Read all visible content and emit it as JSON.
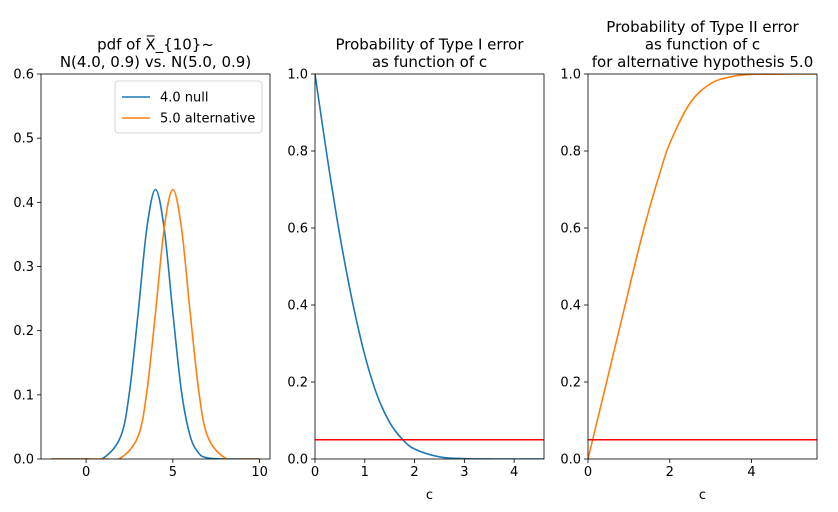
{
  "chart_data": [
    {
      "type": "line",
      "title": [
        "pdf of X̅_{10}~",
        "N(4.0, 0.9) vs. N(5.0, 0.9)"
      ],
      "xlabel": "",
      "ylabel": "",
      "xlim": [
        -2.6,
        10.6
      ],
      "ylim": [
        0,
        0.6
      ],
      "xticks": [
        0,
        5,
        10
      ],
      "yticks": [
        0.0,
        0.1,
        0.2,
        0.3,
        0.4,
        0.5,
        0.6
      ],
      "legend": "top-right",
      "grid": false,
      "series": [
        {
          "name": "4.0 null",
          "color": "#1f77b4",
          "x": [
            -2,
            -1,
            0,
            1,
            2,
            2.5,
            3,
            3.5,
            4,
            4.5,
            5,
            5.5,
            6,
            6.5,
            7,
            8,
            9,
            10
          ],
          "y": [
            0.0,
            0.0,
            0.0002,
            0.0017,
            0.0356,
            0.1046,
            0.2278,
            0.3595,
            0.42,
            0.3595,
            0.2278,
            0.1046,
            0.0356,
            0.0088,
            0.0017,
            0.0,
            0.0,
            0.0
          ]
        },
        {
          "name": "5.0 alternative",
          "color": "#ff7f0e",
          "x": [
            -2,
            -1,
            0,
            1,
            2,
            3,
            3.5,
            4,
            4.5,
            5,
            5.5,
            6,
            6.5,
            7,
            8,
            9,
            10
          ],
          "y": [
            0.0,
            0.0,
            0.0,
            0.0002,
            0.0017,
            0.0356,
            0.1046,
            0.2278,
            0.3595,
            0.42,
            0.3595,
            0.2278,
            0.1046,
            0.0356,
            0.0017,
            0.0,
            0.0
          ]
        }
      ]
    },
    {
      "type": "line",
      "title": [
        "Probability of Type I error",
        "as function of c"
      ],
      "xlabel": "c",
      "ylabel": "",
      "xlim": [
        0,
        4.6
      ],
      "ylim": [
        0,
        1.0
      ],
      "xticks": [
        0,
        1,
        2,
        3,
        4
      ],
      "yticks": [
        0.0,
        0.2,
        0.4,
        0.6,
        0.8,
        1.0
      ],
      "grid": false,
      "series": [
        {
          "color": "#1f77b4",
          "x": [
            0,
            0.25,
            0.5,
            0.75,
            1,
            1.25,
            1.5,
            1.75,
            2,
            2.5,
            3,
            3.5,
            4,
            4.6
          ],
          "y": [
            1.0,
            0.78,
            0.58,
            0.41,
            0.27,
            0.165,
            0.095,
            0.052,
            0.026,
            0.0055,
            0.0009,
            0.0001,
            0.0,
            0.0
          ]
        },
        {
          "color": "#ff0000",
          "x": [
            0,
            4.6
          ],
          "y": [
            0.05,
            0.05
          ]
        }
      ]
    },
    {
      "type": "line",
      "title": [
        "Probability of Type II error",
        "as function of c",
        "for alternative hypothesis 5.0"
      ],
      "xlabel": "c",
      "ylabel": "",
      "xlim": [
        0,
        5.6
      ],
      "ylim": [
        0,
        1.0
      ],
      "xticks": [
        0,
        2,
        4
      ],
      "yticks": [
        0.0,
        0.2,
        0.4,
        0.6,
        0.8,
        1.0
      ],
      "grid": false,
      "series": [
        {
          "color": "#ff7f0e",
          "x": [
            0,
            0.25,
            0.5,
            0.75,
            1,
            1.25,
            1.5,
            1.75,
            2,
            2.5,
            3,
            3.5,
            4,
            5,
            5.6
          ],
          "y": [
            0.0,
            0.11,
            0.22,
            0.33,
            0.44,
            0.55,
            0.65,
            0.74,
            0.82,
            0.925,
            0.975,
            0.993,
            0.999,
            1.0,
            1.0
          ]
        },
        {
          "color": "#ff0000",
          "x": [
            0,
            5.6
          ],
          "y": [
            0.05,
            0.05
          ]
        }
      ]
    }
  ]
}
